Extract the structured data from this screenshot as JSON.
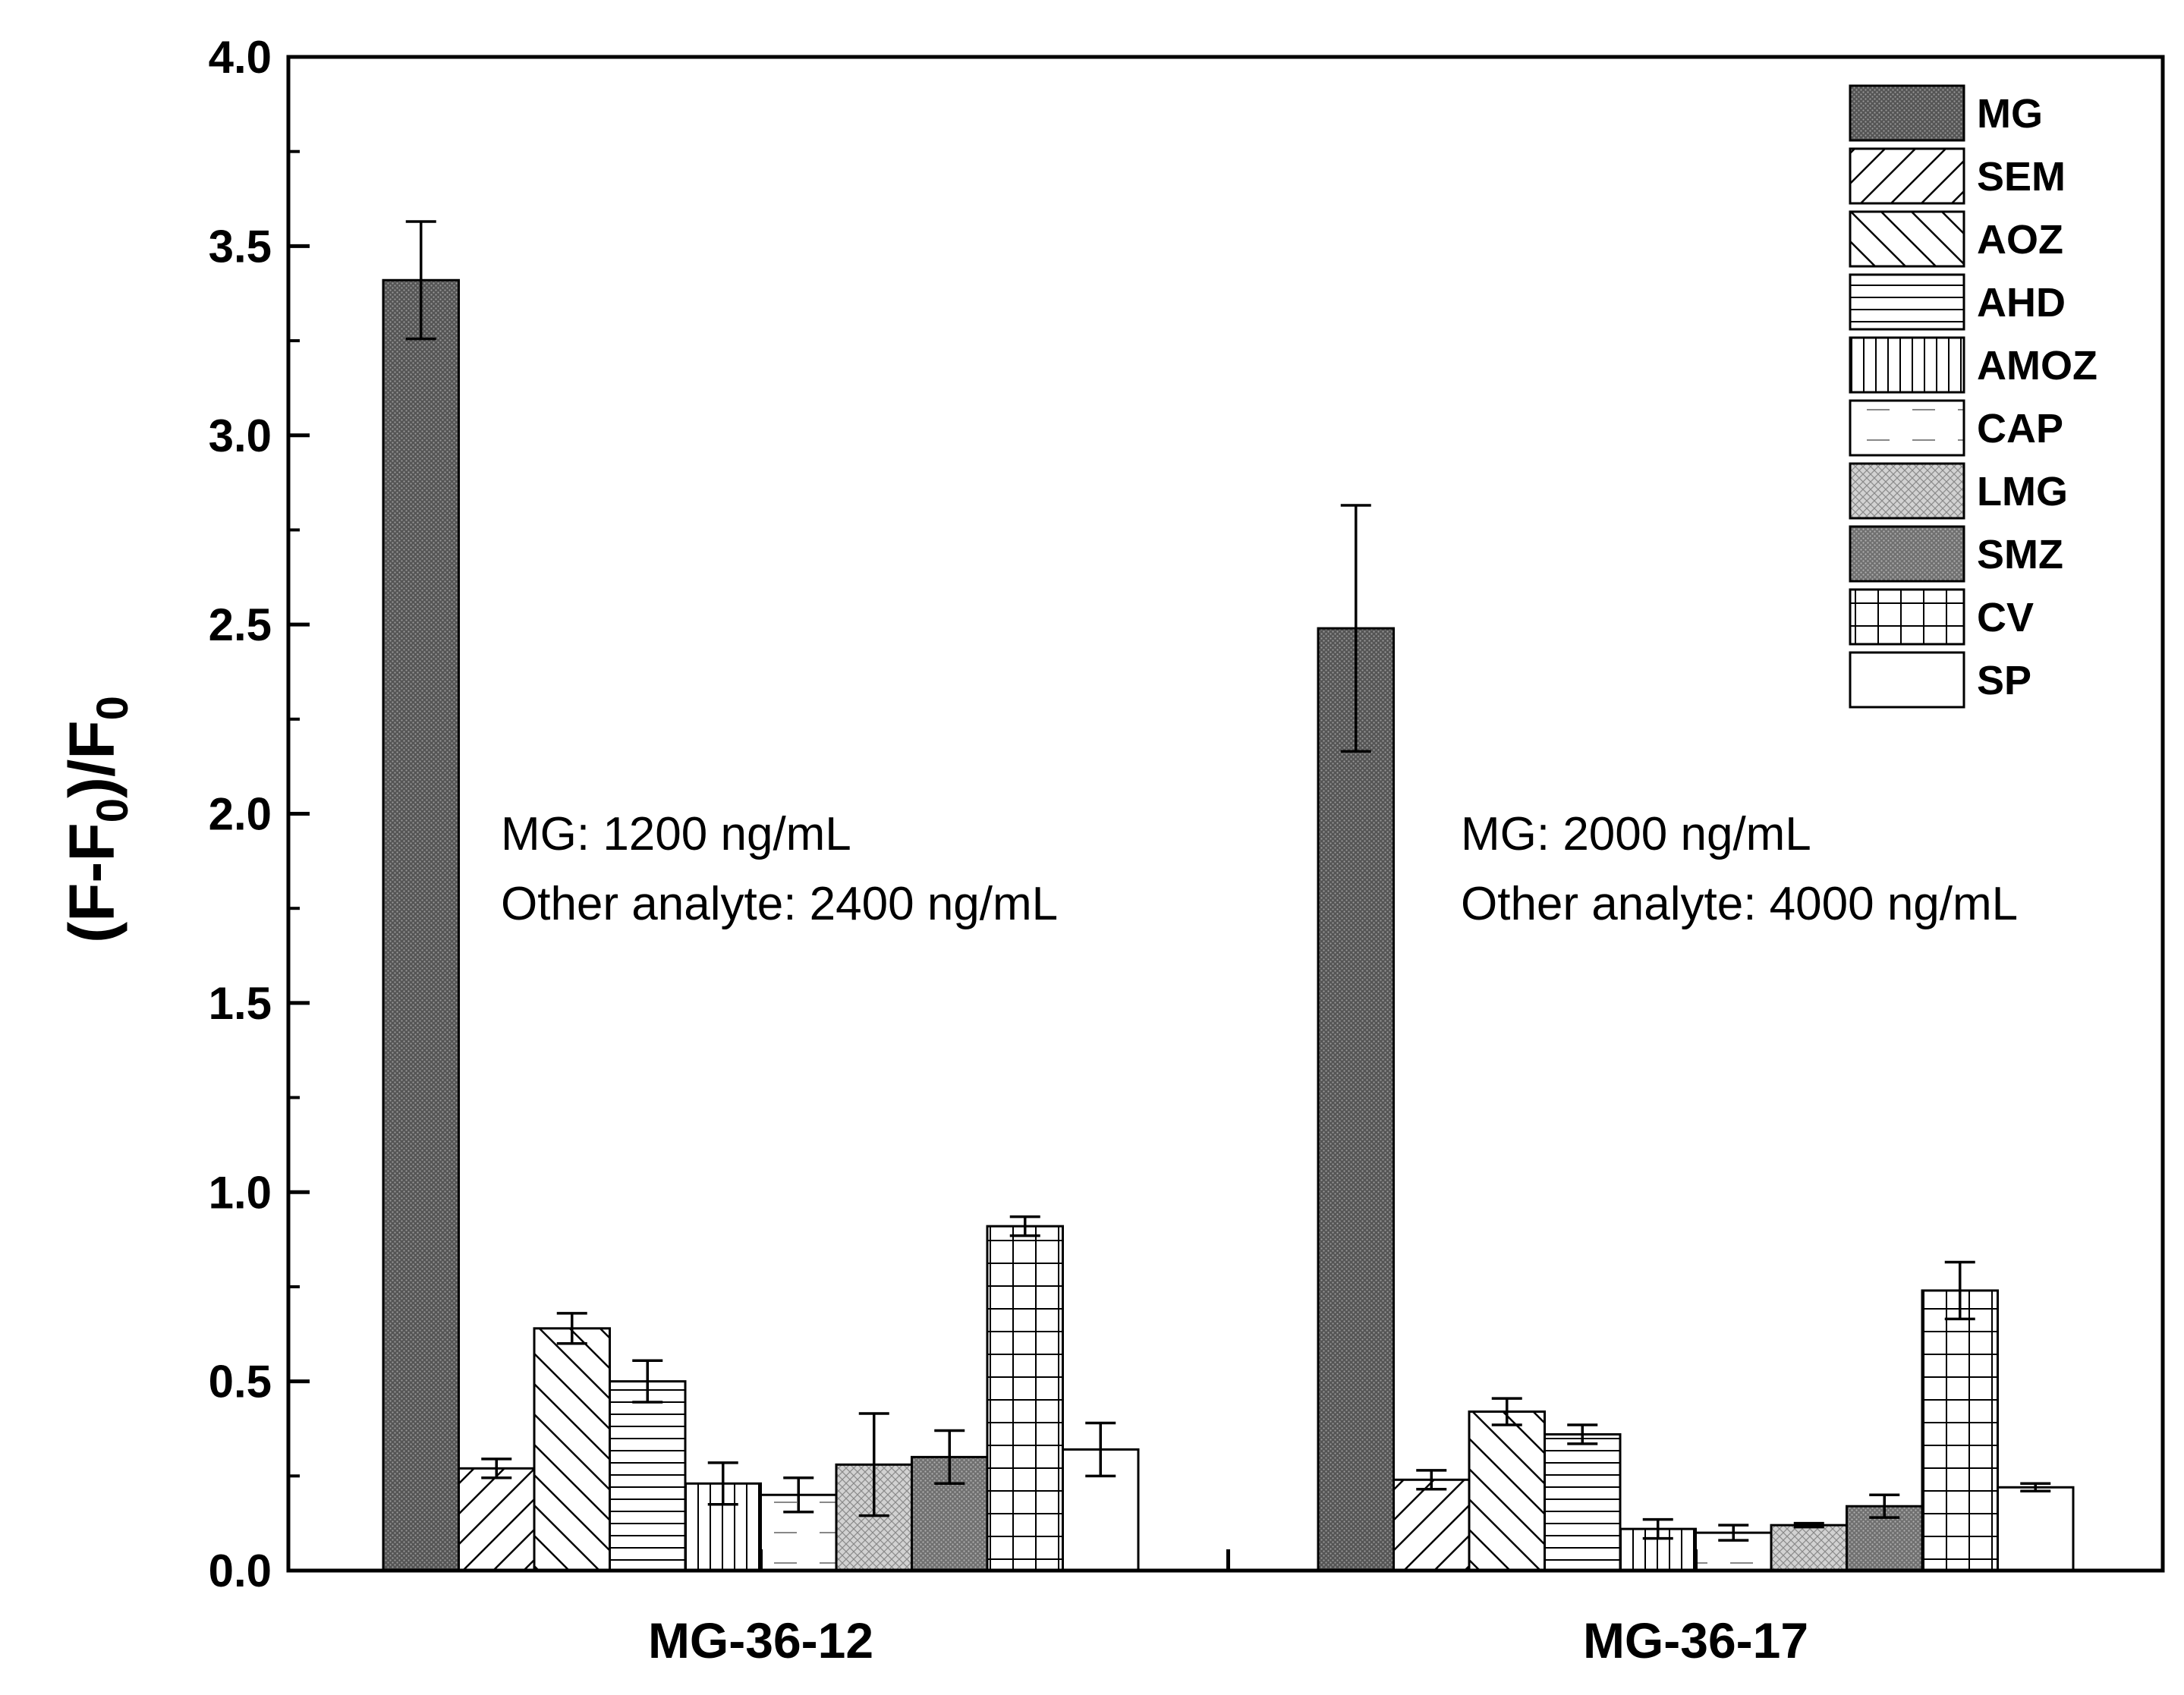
{
  "chart_data": {
    "type": "bar",
    "ylabel_main": "(F-F",
    "ylabel_sub": "0",
    "ylabel_close": ")/F",
    "ylabel_sub2": "0",
    "xlabel": "",
    "ylim": [
      0,
      4.0
    ],
    "yticks": [
      "0.0",
      "0.5",
      "1.0",
      "1.5",
      "2.0",
      "2.5",
      "3.0",
      "3.5",
      "4.0"
    ],
    "categories": [
      "MG-36-12",
      "MG-36-17"
    ],
    "legend_position": "top-right",
    "series": [
      {
        "name": "MG",
        "pattern": "dots-dark",
        "values": [
          3.41,
          2.49
        ],
        "errors": [
          0.155,
          0.325
        ]
      },
      {
        "name": "SEM",
        "pattern": "diag-right",
        "values": [
          0.27,
          0.24
        ],
        "errors": [
          0.025,
          0.025
        ]
      },
      {
        "name": "AOZ",
        "pattern": "diag-left",
        "values": [
          0.64,
          0.42
        ],
        "errors": [
          0.04,
          0.035
        ]
      },
      {
        "name": "AHD",
        "pattern": "horizontal",
        "values": [
          0.5,
          0.36
        ],
        "errors": [
          0.055,
          0.025
        ]
      },
      {
        "name": "AMOZ",
        "pattern": "vertical",
        "values": [
          0.23,
          0.11
        ],
        "errors": [
          0.055,
          0.025
        ]
      },
      {
        "name": "CAP",
        "pattern": "dashed",
        "values": [
          0.2,
          0.1
        ],
        "errors": [
          0.045,
          0.02
        ]
      },
      {
        "name": "LMG",
        "pattern": "crosshatch",
        "values": [
          0.28,
          0.12
        ],
        "errors": [
          0.135,
          0.005
        ]
      },
      {
        "name": "SMZ",
        "pattern": "dots-mid",
        "values": [
          0.3,
          0.17
        ],
        "errors": [
          0.07,
          0.03
        ]
      },
      {
        "name": "CV",
        "pattern": "grid",
        "values": [
          0.91,
          0.74
        ],
        "errors": [
          0.025,
          0.075
        ]
      },
      {
        "name": "SP",
        "pattern": "none",
        "values": [
          0.32,
          0.22
        ],
        "errors": [
          0.07,
          0.01
        ]
      }
    ],
    "annotations": [
      {
        "group": 0,
        "lines": [
          "MG: 1200 ng/mL",
          "Other analyte: 2400 ng/mL"
        ]
      },
      {
        "group": 1,
        "lines": [
          "MG: 2000 ng/mL",
          "Other analyte: 4000 ng/mL"
        ]
      }
    ]
  }
}
